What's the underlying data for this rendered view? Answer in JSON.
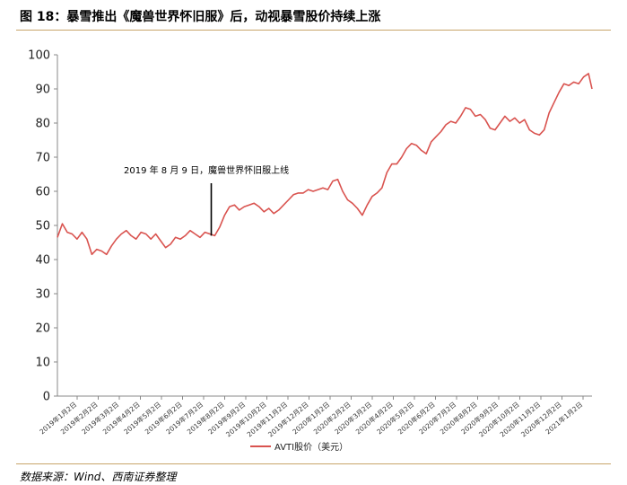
{
  "header": {
    "figure_title": "图 18：暴雪推出《魔兽世界怀旧服》后，动视暴雪股价持续上涨"
  },
  "footer": {
    "source": "数据来源：Wind、西南证券整理"
  },
  "colors": {
    "series": "#d9534f",
    "axis": "#888888",
    "rule": "#c8a56a"
  },
  "chart_data": {
    "type": "line",
    "title": "",
    "xlabel": "",
    "ylabel": "",
    "ylim": [
      0,
      100
    ],
    "yticks": [
      0,
      10,
      20,
      30,
      40,
      50,
      60,
      70,
      80,
      90,
      100
    ],
    "grid": false,
    "legend_position": "bottom-center",
    "x_tick_labels": [
      "2019年1月2日",
      "2019年2月2日",
      "2019年3月2日",
      "2019年4月2日",
      "2019年5月2日",
      "2019年6月2日",
      "2019年7月2日",
      "2019年8月2日",
      "2019年9月2日",
      "2019年10月2日",
      "2019年11月2日",
      "2019年12月2日",
      "2020年1月2日",
      "2020年2月2日",
      "2020年3月2日",
      "2020年4月2日",
      "2020年5月2日",
      "2020年6月2日",
      "2020年7月2日",
      "2020年8月2日",
      "2020年9月2日",
      "2020年10月2日",
      "2020年11月2日",
      "2020年12月2日",
      "2021年1月2日"
    ],
    "annotation": {
      "text": "2019 年 8 月 9 日，魔兽世界怀旧服上线",
      "x": "2019-08-09",
      "y": 47
    },
    "series": [
      {
        "name": "AVTI股价（美元）",
        "x": [
          "2019-01-02",
          "2019-01-09",
          "2019-01-16",
          "2019-01-23",
          "2019-01-30",
          "2019-02-06",
          "2019-02-13",
          "2019-02-20",
          "2019-02-27",
          "2019-03-06",
          "2019-03-13",
          "2019-03-20",
          "2019-03-27",
          "2019-04-03",
          "2019-04-10",
          "2019-04-17",
          "2019-04-24",
          "2019-05-01",
          "2019-05-08",
          "2019-05-15",
          "2019-05-22",
          "2019-05-29",
          "2019-06-05",
          "2019-06-12",
          "2019-06-19",
          "2019-06-26",
          "2019-07-03",
          "2019-07-10",
          "2019-07-17",
          "2019-07-24",
          "2019-07-31",
          "2019-08-07",
          "2019-08-14",
          "2019-08-21",
          "2019-08-28",
          "2019-09-04",
          "2019-09-11",
          "2019-09-18",
          "2019-09-25",
          "2019-10-02",
          "2019-10-09",
          "2019-10-16",
          "2019-10-23",
          "2019-10-30",
          "2019-11-06",
          "2019-11-13",
          "2019-11-20",
          "2019-11-27",
          "2019-12-04",
          "2019-12-11",
          "2019-12-18",
          "2019-12-25",
          "2020-01-01",
          "2020-01-08",
          "2020-01-15",
          "2020-01-22",
          "2020-01-29",
          "2020-02-05",
          "2020-02-12",
          "2020-02-19",
          "2020-02-26",
          "2020-03-04",
          "2020-03-11",
          "2020-03-18",
          "2020-03-25",
          "2020-04-01",
          "2020-04-08",
          "2020-04-15",
          "2020-04-22",
          "2020-04-29",
          "2020-05-06",
          "2020-05-13",
          "2020-05-20",
          "2020-05-27",
          "2020-06-03",
          "2020-06-10",
          "2020-06-17",
          "2020-06-24",
          "2020-07-01",
          "2020-07-08",
          "2020-07-15",
          "2020-07-22",
          "2020-07-29",
          "2020-08-05",
          "2020-08-12",
          "2020-08-19",
          "2020-08-26",
          "2020-09-02",
          "2020-09-09",
          "2020-09-16",
          "2020-09-23",
          "2020-09-30",
          "2020-10-07",
          "2020-10-14",
          "2020-10-21",
          "2020-10-28",
          "2020-11-04",
          "2020-11-11",
          "2020-11-18",
          "2020-11-25",
          "2020-12-02",
          "2020-12-09",
          "2020-12-16",
          "2020-12-23",
          "2020-12-30",
          "2021-01-06",
          "2021-01-13",
          "2021-01-20",
          "2021-01-27",
          "2021-02-01"
        ],
        "values": [
          46.5,
          50.5,
          48.0,
          47.5,
          46.0,
          48.0,
          46.0,
          41.5,
          43.0,
          42.5,
          41.5,
          44.0,
          46.0,
          47.5,
          48.5,
          47.0,
          46.0,
          48.0,
          47.5,
          46.0,
          47.5,
          45.5,
          43.5,
          44.5,
          46.5,
          46.0,
          47.0,
          48.5,
          47.5,
          46.5,
          48.0,
          47.5,
          47.0,
          49.5,
          53.0,
          55.5,
          56.0,
          54.5,
          55.5,
          56.0,
          56.5,
          55.5,
          54.0,
          55.0,
          53.5,
          54.5,
          56.0,
          57.5,
          59.0,
          59.5,
          59.5,
          60.5,
          60.0,
          60.5,
          61.0,
          60.5,
          63.0,
          63.5,
          60.0,
          57.5,
          56.5,
          55.0,
          53.0,
          56.0,
          58.5,
          59.5,
          61.0,
          65.5,
          68.0,
          68.0,
          70.0,
          72.5,
          74.0,
          73.5,
          72.0,
          71.0,
          74.5,
          76.0,
          77.5,
          79.5,
          80.5,
          80.0,
          82.0,
          84.5,
          84.0,
          82.0,
          82.5,
          81.0,
          78.5,
          78.0,
          80.0,
          82.0,
          80.5,
          81.5,
          80.0,
          81.0,
          78.0,
          77.0,
          76.5,
          78.0,
          83.0,
          86.0,
          89.0,
          91.5,
          91.0,
          92.0,
          91.5,
          93.5,
          94.5,
          90.0
        ]
      }
    ]
  }
}
